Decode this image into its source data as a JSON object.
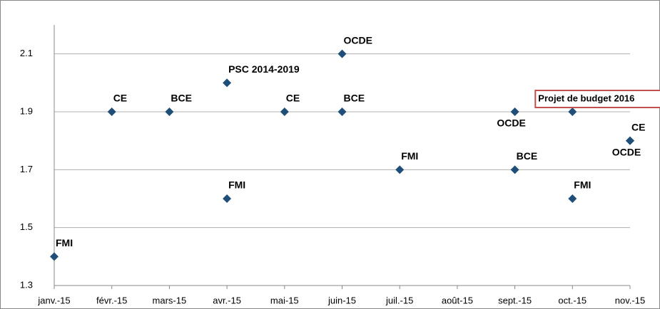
{
  "chart_data": {
    "type": "scatter",
    "categories": [
      "janv.-15",
      "févr.-15",
      "mars-15",
      "avr.-15",
      "mai-15",
      "juin-15",
      "juil.-15",
      "août-15",
      "sept.-15",
      "oct.-15",
      "nov.-15"
    ],
    "marker_color": "#1f4e79",
    "series": [
      {
        "name": "FMI",
        "color": "#8064a2",
        "values": [
          1.4,
          null,
          null,
          1.6,
          null,
          null,
          1.7,
          null,
          null,
          1.6,
          null
        ]
      },
      {
        "name": "CE",
        "color": "#77933c",
        "values": [
          null,
          1.9,
          null,
          null,
          1.9,
          null,
          null,
          null,
          null,
          null,
          1.8
        ]
      },
      {
        "name": "BCE",
        "color": "#31849b",
        "values": [
          null,
          null,
          1.9,
          null,
          null,
          1.9,
          null,
          null,
          1.7,
          null,
          null
        ]
      },
      {
        "name": "PSC 2014-2019",
        "color": "#c0504d",
        "values": [
          null,
          null,
          null,
          2.0,
          null,
          null,
          null,
          null,
          null,
          null,
          null
        ]
      },
      {
        "name": "OCDE",
        "color": "#f79646",
        "values": [
          null,
          null,
          null,
          null,
          null,
          2.1,
          null,
          null,
          1.9,
          null,
          1.8
        ]
      },
      {
        "name": "Projet de budget 2016",
        "color": "#c0504d",
        "boxed": true,
        "values": [
          null,
          null,
          null,
          null,
          null,
          null,
          null,
          null,
          null,
          1.9,
          null
        ]
      }
    ],
    "ylim": [
      1.3,
      2.2
    ],
    "yticks": [
      1.3,
      1.5,
      1.7,
      1.9,
      2.1
    ],
    "grid": true
  }
}
